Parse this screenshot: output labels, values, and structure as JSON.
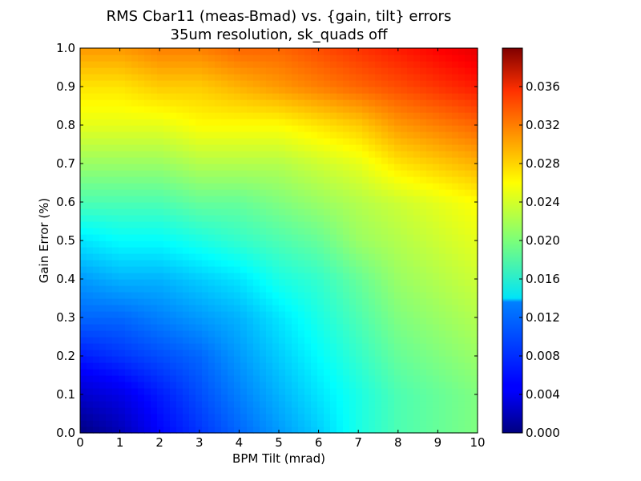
{
  "chart_data": {
    "type": "heatmap",
    "title": "RMS Cbar11 (meas-Bmad) vs. {gain, tilt} errors",
    "subtitle": "35um resolution, sk_quads off",
    "xlabel": "BPM Tilt (mrad)",
    "ylabel": "Gain Error (%)",
    "xlim": [
      0,
      10
    ],
    "ylim": [
      0,
      1.0
    ],
    "x_ticks": [
      "0",
      "1",
      "2",
      "3",
      "4",
      "5",
      "6",
      "7",
      "8",
      "9",
      "10"
    ],
    "y_ticks": [
      "0.0",
      "0.1",
      "0.2",
      "0.3",
      "0.4",
      "0.5",
      "0.6",
      "0.7",
      "0.8",
      "0.9",
      "1.0"
    ],
    "colorbar": {
      "range": [
        0,
        0.04
      ],
      "ticks": [
        "0.000",
        "0.004",
        "0.008",
        "0.012",
        "0.016",
        "0.020",
        "0.024",
        "0.028",
        "0.032",
        "0.036"
      ],
      "colormap": "jet"
    },
    "x": [
      0,
      1,
      2,
      3,
      4,
      5,
      6,
      7,
      8,
      9,
      10
    ],
    "y": [
      0,
      0.1,
      0.2,
      0.3,
      0.4,
      0.5,
      0.6,
      0.7,
      0.8,
      0.9,
      1.0
    ],
    "z": [
      [
        0.0,
        0.002,
        0.005,
        0.007,
        0.009,
        0.011,
        0.013,
        0.016,
        0.018,
        0.019,
        0.02
      ],
      [
        0.003,
        0.004,
        0.006,
        0.008,
        0.01,
        0.012,
        0.014,
        0.016,
        0.018,
        0.019,
        0.02
      ],
      [
        0.006,
        0.007,
        0.008,
        0.009,
        0.011,
        0.013,
        0.015,
        0.017,
        0.019,
        0.02,
        0.021
      ],
      [
        0.009,
        0.009,
        0.01,
        0.011,
        0.012,
        0.014,
        0.016,
        0.018,
        0.02,
        0.021,
        0.022
      ],
      [
        0.011,
        0.012,
        0.012,
        0.013,
        0.014,
        0.016,
        0.017,
        0.019,
        0.021,
        0.022,
        0.023
      ],
      [
        0.014,
        0.015,
        0.015,
        0.016,
        0.017,
        0.018,
        0.019,
        0.021,
        0.022,
        0.023,
        0.024
      ],
      [
        0.018,
        0.018,
        0.018,
        0.019,
        0.019,
        0.02,
        0.021,
        0.022,
        0.023,
        0.024,
        0.025
      ],
      [
        0.021,
        0.021,
        0.021,
        0.022,
        0.022,
        0.022,
        0.023,
        0.024,
        0.026,
        0.027,
        0.028
      ],
      [
        0.024,
        0.024,
        0.024,
        0.025,
        0.025,
        0.025,
        0.026,
        0.027,
        0.029,
        0.03,
        0.031
      ],
      [
        0.026,
        0.026,
        0.027,
        0.027,
        0.028,
        0.029,
        0.03,
        0.031,
        0.032,
        0.033,
        0.034
      ],
      [
        0.029,
        0.029,
        0.03,
        0.03,
        0.031,
        0.031,
        0.032,
        0.033,
        0.034,
        0.035,
        0.036
      ]
    ],
    "grid": false,
    "legend": "colorbar-right"
  }
}
